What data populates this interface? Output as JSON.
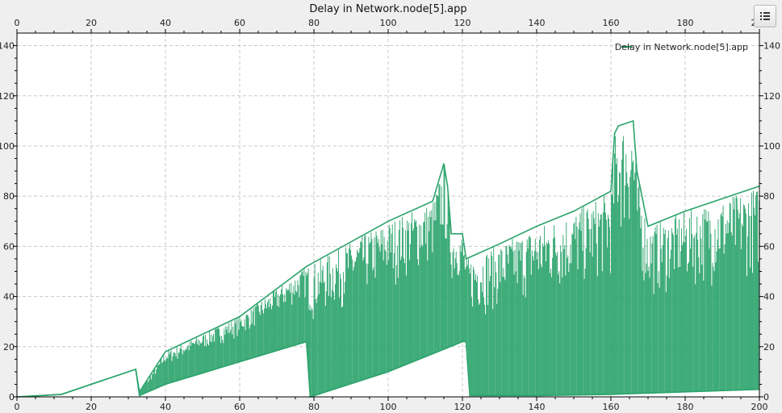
{
  "icons": {
    "options": "list-icon"
  },
  "chart_data": {
    "type": "line",
    "title": "Delay in Network.node[5].app",
    "xlim": [
      0,
      200
    ],
    "ylim": [
      0,
      145
    ],
    "xticks": [
      0,
      20,
      40,
      60,
      80,
      100,
      120,
      140,
      160,
      180,
      200
    ],
    "yticks": [
      0,
      20,
      40,
      60,
      80,
      100,
      120,
      140
    ],
    "grid": true,
    "legend_position": "top-right",
    "series": [
      {
        "name": "Delay in Network.node[5].app",
        "color": "#2aa36b",
        "envelope_upper": {
          "x": [
            0,
            12,
            20,
            32,
            33,
            40,
            60,
            78,
            100,
            112,
            115,
            116,
            117,
            120,
            121,
            130,
            140,
            150,
            155,
            160,
            161,
            162,
            164,
            166,
            167,
            170,
            180,
            190,
            200
          ],
          "y": [
            0,
            1,
            5,
            11,
            2,
            18,
            32,
            52,
            70,
            78,
            93,
            84,
            65,
            65,
            55,
            61,
            68,
            74,
            78,
            82,
            105,
            108,
            109,
            110,
            90,
            68,
            74,
            79,
            84
          ]
        },
        "envelope_lower": {
          "x": [
            0,
            12,
            20,
            32,
            33,
            40,
            60,
            78,
            79,
            100,
            120,
            121,
            122,
            140,
            160,
            180,
            200
          ],
          "y": [
            0,
            1,
            5,
            11,
            0.5,
            5,
            14,
            22,
            0,
            10,
            22,
            22,
            0.5,
            0.5,
            1,
            2,
            3
          ]
        }
      }
    ]
  }
}
